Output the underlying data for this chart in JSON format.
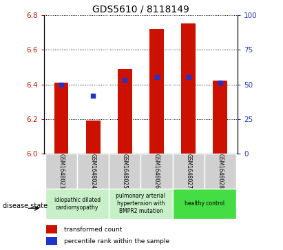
{
  "title": "GDS5610 / 8118149",
  "samples": [
    "GSM1648023",
    "GSM1648024",
    "GSM1648025",
    "GSM1648026",
    "GSM1648027",
    "GSM1648028"
  ],
  "transformed_counts": [
    6.41,
    6.19,
    6.49,
    6.72,
    6.75,
    6.42
  ],
  "percentile_ranks": [
    50,
    42,
    53,
    55,
    55,
    51
  ],
  "ylim_left": [
    6.0,
    6.8
  ],
  "ylim_right": [
    0,
    100
  ],
  "yticks_left": [
    6.0,
    6.2,
    6.4,
    6.6,
    6.8
  ],
  "yticks_right": [
    0,
    25,
    50,
    75,
    100
  ],
  "bar_color": "#cc1100",
  "dot_color": "#2233cc",
  "disease_groups": [
    {
      "label": "idiopathic dilated\ncardiomyopathy",
      "start": 0,
      "end": 1,
      "color": "#c8f0c8"
    },
    {
      "label": "pulmonary arterial\nhypertension with\nBMPR2 mutation",
      "start": 2,
      "end": 3,
      "color": "#c8f0c8"
    },
    {
      "label": "healthy control",
      "start": 4,
      "end": 5,
      "color": "#44dd44"
    }
  ],
  "legend_red_label": "transformed count",
  "legend_blue_label": "percentile rank within the sample",
  "disease_state_label": "disease state",
  "sample_bg": "#d0d0d0",
  "plot_bg": "#ffffff",
  "title_fontsize": 10,
  "bar_width": 0.45,
  "xlim": [
    -0.55,
    5.55
  ]
}
